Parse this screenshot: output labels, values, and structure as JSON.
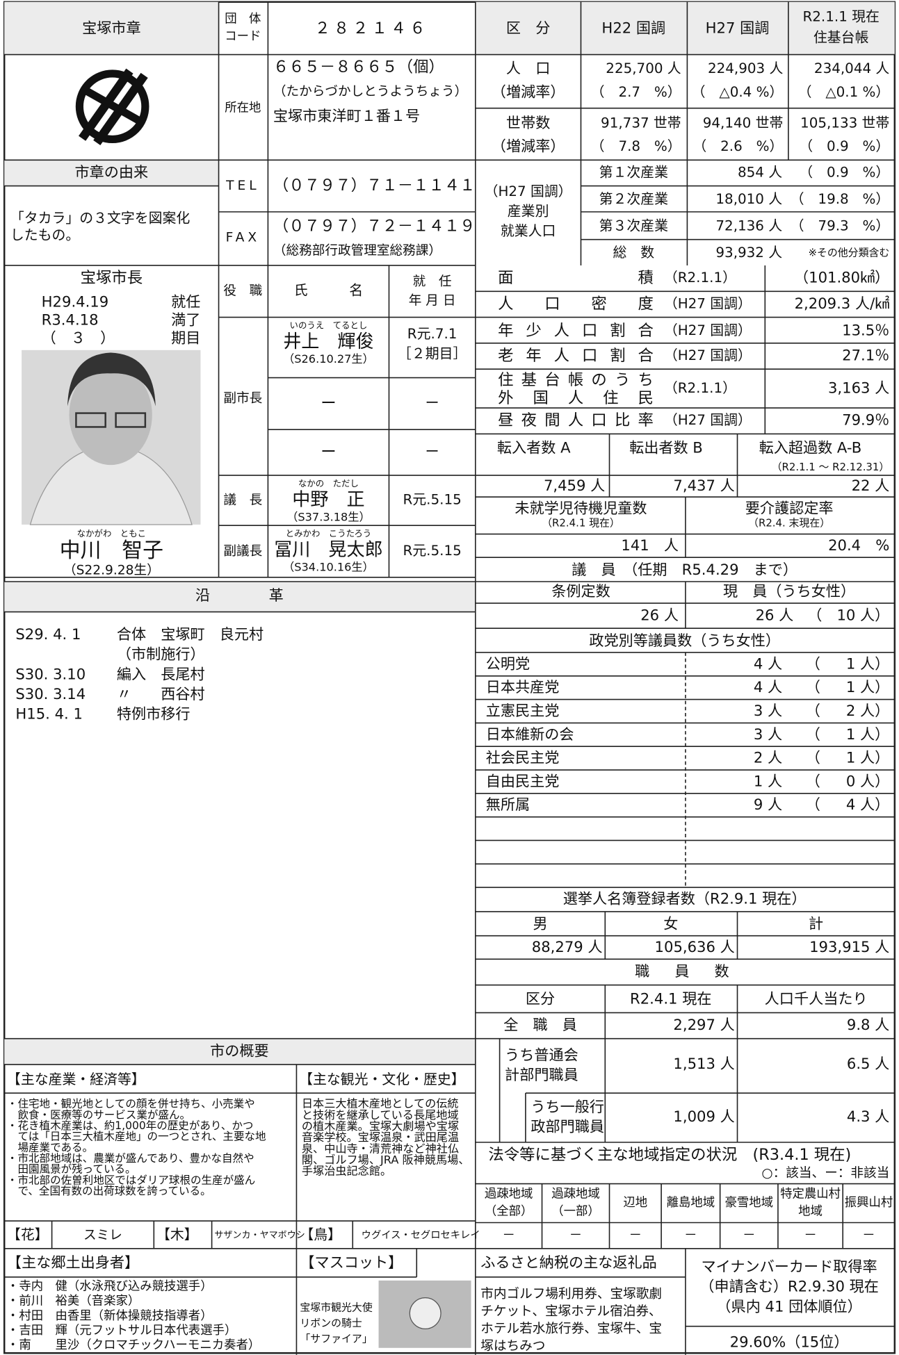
{
  "emblem": {
    "label": "宝塚市章",
    "origin_title": "市章の由来",
    "origin_text": [
      "「タカラ」の３文字を図案化",
      "したもの。"
    ]
  },
  "code": {
    "label": [
      "団　体",
      "コード"
    ],
    "value": "２８２１４６"
  },
  "address": {
    "label": "所在地",
    "lines": [
      "６６５－８６６５（個）",
      "（たからづかしとうようちょう）",
      "宝塚市東洋町１番１号"
    ]
  },
  "tel": {
    "label": "TEL",
    "value": "（０７９７）７１－１１４１"
  },
  "fax": {
    "label": "FAX",
    "lines": [
      "（０７９７）７２－１４１９",
      "（総務部行政管理室総務課）"
    ]
  },
  "population_table": {
    "headers": [
      "区　分",
      "H22 国調",
      "H27 国調"
    ],
    "header_last": [
      "R2.1.1 現在",
      "住基台帳"
    ],
    "rows": [
      {
        "label": [
          "人　口",
          "（増減率）"
        ],
        "cells": [
          [
            "225,700 人",
            "（　2.7　%）"
          ],
          [
            "224,903 人",
            "（　△0.4 %）"
          ],
          [
            "234,044 人",
            "（　△0.1 %）"
          ]
        ]
      },
      {
        "label": [
          "世帯数",
          "（増減率）"
        ],
        "cells": [
          [
            "91,737 世帯",
            "（　7.8　%）"
          ],
          [
            "94,140 世帯",
            "（　2.6　%）"
          ],
          [
            "105,133 世帯",
            "（　0.9　%）"
          ]
        ]
      }
    ]
  },
  "employment": {
    "label": [
      "（H27 国調）",
      "産業別",
      "就業人口"
    ],
    "rows": [
      [
        "第１次産業",
        "854 人",
        "（　0.9　%）"
      ],
      [
        "第２次産業",
        "18,010 人",
        "（　19.8　%）"
      ],
      [
        "第３次産業",
        "72,136 人",
        "（　79.3　%）"
      ],
      [
        "総　数",
        "93,932 人",
        "※その他分類含む"
      ]
    ]
  },
  "mayor": {
    "title": "宝塚市長",
    "term": [
      [
        "H29.4.19",
        "就任"
      ],
      [
        "R3.4.18",
        "満了"
      ],
      [
        "（　３　）",
        "期目"
      ]
    ],
    "ruby": "なかがわ　ともこ",
    "name": "中川　智子",
    "birth": "（S22.9.28生）"
  },
  "officials": {
    "headers": [
      "役　職",
      "氏　　　名"
    ],
    "header_date": [
      "就　任",
      "年 月 日"
    ],
    "role_deputy": "副市長",
    "rows": [
      {
        "ruby": "いのうえ　てるとし",
        "name": "井上　輝俊",
        "birth": "（S26.10.27生）",
        "date": [
          "R元.7.1",
          "［２期目］"
        ]
      },
      {
        "name": "ー",
        "date": [
          "ー"
        ]
      },
      {
        "name": "ー",
        "date": [
          "ー"
        ]
      },
      {
        "role": "議　長",
        "ruby": "なかの　ただし",
        "name": "中野　正",
        "birth": "（S37.3.18生）",
        "date": [
          "R元.5.15"
        ]
      },
      {
        "role": "副議長",
        "ruby": "とみかわ　こうたろう",
        "name": "冨川　晃太郎",
        "birth": "（S34.10.16生）",
        "date": [
          "R元.5.15"
        ]
      }
    ]
  },
  "stats": [
    {
      "label": [
        "面　　　　　　積"
      ],
      "note": "（R2.1.1）",
      "value": "（101.80㎢）"
    },
    {
      "label": [
        "人　口　密　度"
      ],
      "note": "（H27 国調）",
      "value": "2,209.3 人/㎢"
    },
    {
      "label": [
        "年少人口割合"
      ],
      "note": "（H27 国調）",
      "value": "13.5％"
    },
    {
      "label": [
        "老年人口割合"
      ],
      "note": "（H27 国調）",
      "value": "27.1％"
    },
    {
      "label": [
        "住基台帳のうち",
        "外国人住民"
      ],
      "note": "（R2.1.1）",
      "value": "3,163 人"
    },
    {
      "label": [
        "昼夜間人口比率"
      ],
      "note": "（H27 国調）",
      "value": "79.9％"
    }
  ],
  "migration": {
    "headers": [
      "転入者数 A",
      "転出者数 B",
      "転入超過数 A-B"
    ],
    "period": "（R2.1.1 ～ R2.12.31）",
    "values": [
      "7,459 人",
      "7,437 人",
      "22 人"
    ]
  },
  "childcare": {
    "headers": [
      "未就学児待機児童数",
      "要介護認定率"
    ],
    "notes": [
      "（R2.4.1 現在）",
      "（R2.4. 末現在）"
    ],
    "values": [
      "141　人",
      "20.4　%"
    ]
  },
  "council": {
    "title": "議　員　（任期　R5.4.29　まで）",
    "headers": [
      "条例定数",
      "現　員（うち女性）"
    ],
    "quota": "26 人",
    "current": "26 人",
    "women": "（　10 人）",
    "party_title": "政党別等議員数（うち女性）",
    "parties": [
      [
        "公明党",
        "4 人",
        "（",
        "1 人）"
      ],
      [
        "日本共産党",
        "4 人",
        "（",
        "1 人）"
      ],
      [
        "立憲民主党",
        "3 人",
        "（",
        "2 人）"
      ],
      [
        "日本維新の会",
        "3 人",
        "（",
        "1 人）"
      ],
      [
        "社会民主党",
        "2 人",
        "（",
        "1 人）"
      ],
      [
        "自由民主党",
        "1 人",
        "（",
        "0 人）"
      ],
      [
        "無所属",
        "9 人",
        "（",
        "4 人）"
      ]
    ]
  },
  "history": {
    "title": "沿　　　　革",
    "rows": [
      {
        "date": "S29. 4. 1",
        "text": [
          "合体　宝塚町　良元村",
          "（市制施行）"
        ]
      },
      {
        "date": "S30. 3.10",
        "text": [
          "編入　長尾村"
        ]
      },
      {
        "date": "S30. 3.14",
        "text": [
          "〃　　西谷村"
        ]
      },
      {
        "date": "H15. 4. 1",
        "text": [
          "特例市移行"
        ]
      }
    ]
  },
  "election": {
    "title": "選挙人名簿登録者数（R2.9.1 現在）",
    "headers": [
      "男",
      "女",
      "計"
    ],
    "values": [
      "88,279 人",
      "105,636 人",
      "193,915 人"
    ]
  },
  "staff": {
    "title": "職　員　数",
    "headers": [
      "区分",
      "R2.4.1 現在",
      "人口千人当たり"
    ],
    "rows": [
      {
        "label": [
          "全　職　員"
        ],
        "count": "2,297 人",
        "per": "9.8 人"
      },
      {
        "label": [
          "うち普通会",
          "計部門職員"
        ],
        "count": "1,513 人",
        "per": "6.5 人"
      },
      {
        "label": [
          "うち一般行",
          "政部門職員"
        ],
        "count": "1,009 人",
        "per": "4.3 人"
      }
    ]
  },
  "designation": {
    "title": "法令等に基づく主な地域指定の状況　(R3.4.1 現在)",
    "legend": "○：該当、ー：非該当",
    "areas": [
      [
        "過疎地域",
        "（全部）"
      ],
      [
        "過疎地域",
        "（一部）"
      ],
      [
        "辺地"
      ],
      [
        "離島地域"
      ],
      [
        "豪雪地域"
      ],
      [
        "特定農山村",
        "地域"
      ],
      [
        "振興山村"
      ]
    ],
    "status": [
      "－",
      "－",
      "－",
      "－",
      "－",
      "－",
      "－"
    ]
  },
  "overview": {
    "title": "市の概要",
    "industry_title": "【主な産業・経済等】",
    "industry": [
      "・住宅地・観光地としての顔を併せ持ち、小売業や",
      "　飲食・医療等のサービス業が盛ん。",
      "・花き植木産業は、約1,000年の歴史があり、かつ",
      "　ては「日本三大植木産地」の一つとされ、主要な地",
      "　場産業である。",
      "・市北部地域は、農業が盛んであり、豊かな自然や",
      "　田園風景が残っている。",
      "・市北部の佐曽利地区ではダリア球根の生産が盛ん",
      "　で、全国有数の出荷球数を誇っている。"
    ],
    "tourism_title": "【主な観光・文化・歴史】",
    "tourism": [
      "日本三大植木産地としての伝統",
      "と技術を継承している長尾地域",
      "の植木産業。宝塚大劇場や宝塚",
      "音楽学校。宝塚温泉・武田尾温",
      "泉、中山寺・清荒神など神社仏",
      "閣、ゴルフ場、JRA 阪神競馬場、",
      "手塚治虫記念館。"
    ],
    "flower_label": "【花】",
    "flower": "スミレ",
    "tree_label": "【木】",
    "tree": "サザンカ・ヤマボウシ",
    "bird_label": "【鳥】",
    "bird": "ウグイス・セグロセキレイ",
    "people_title": "【主な郷土出身者】",
    "people": [
      "・寺内　健（水泳飛び込み競技選手）",
      "・前川　裕美（音楽家）",
      "・村田　由香里（新体操競技指導者）",
      "・吉田　輝（元フットサル日本代表選手）",
      "・南　　里沙（クロマチックハーモニカ奏者）"
    ],
    "mascot_title": "【マスコット】",
    "mascot": [
      "宝塚市観光大使",
      "リボンの騎士",
      "「サファイア」"
    ]
  },
  "furusato": {
    "title": "ふるさと納税の主な返礼品",
    "lines": [
      "市内ゴルフ場利用券、宝塚歌劇",
      "チケット、宝塚ホテル宿泊券、",
      "ホテル若水旅行券、宝塚牛、宝",
      "塚はちみつ"
    ]
  },
  "mynumber": {
    "lines": [
      "マイナンバーカード取得率",
      "（申請含む）R2.9.30 現在",
      "（県内 41 団体順位）"
    ],
    "value": "29.60%（15位）"
  }
}
